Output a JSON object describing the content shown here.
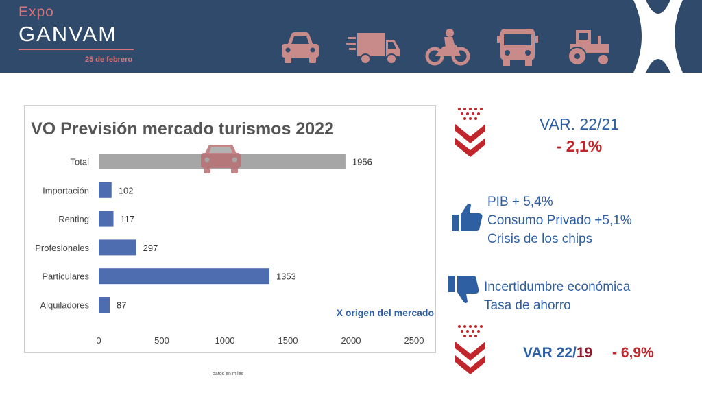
{
  "header": {
    "brand_top": "Expo",
    "brand_name": "GANVAM",
    "brand_date": "25 de febrero",
    "icons": [
      "car-icon",
      "truck-icon",
      "motorcycle-icon",
      "bus-icon",
      "tractor-icon"
    ]
  },
  "colors": {
    "header_bg": "#2f4a6a",
    "accent_pink": "#d9767a",
    "bar_blue": "#4e6db0",
    "bar_gray": "#a6a6a6",
    "text_blue": "#2e5fa3",
    "text_red": "#c0262b"
  },
  "chart_data": {
    "type": "bar",
    "orientation": "horizontal",
    "title": "VO Previsión mercado turismos 2022",
    "categories": [
      "Total",
      "Importación",
      "Renting",
      "Profesionales",
      "Particulares",
      "Alquiladores"
    ],
    "values": [
      1956,
      102,
      117,
      297,
      1353,
      87
    ],
    "data_labels": [
      "1956",
      "102",
      "117",
      "297",
      "1353",
      "87"
    ],
    "xlim": [
      0,
      2500
    ],
    "x_ticks": [
      "0",
      "500",
      "1000",
      "1500",
      "2000",
      "2500"
    ],
    "annotation": "X origen del mercado",
    "grid": false
  },
  "footnote": "datos en miles",
  "var_2221": {
    "label": "VAR. 22/21",
    "value": "- 2,1%"
  },
  "positives": [
    "PIB + 5,4%",
    "Consumo Privado +5,1%",
    "Crisis de los chips"
  ],
  "negatives": [
    "Incertidumbre económica",
    "Tasa de ahorro"
  ],
  "var_2219": {
    "label_a": "VAR 22/",
    "label_b": "19",
    "value": "- 6,9%"
  }
}
